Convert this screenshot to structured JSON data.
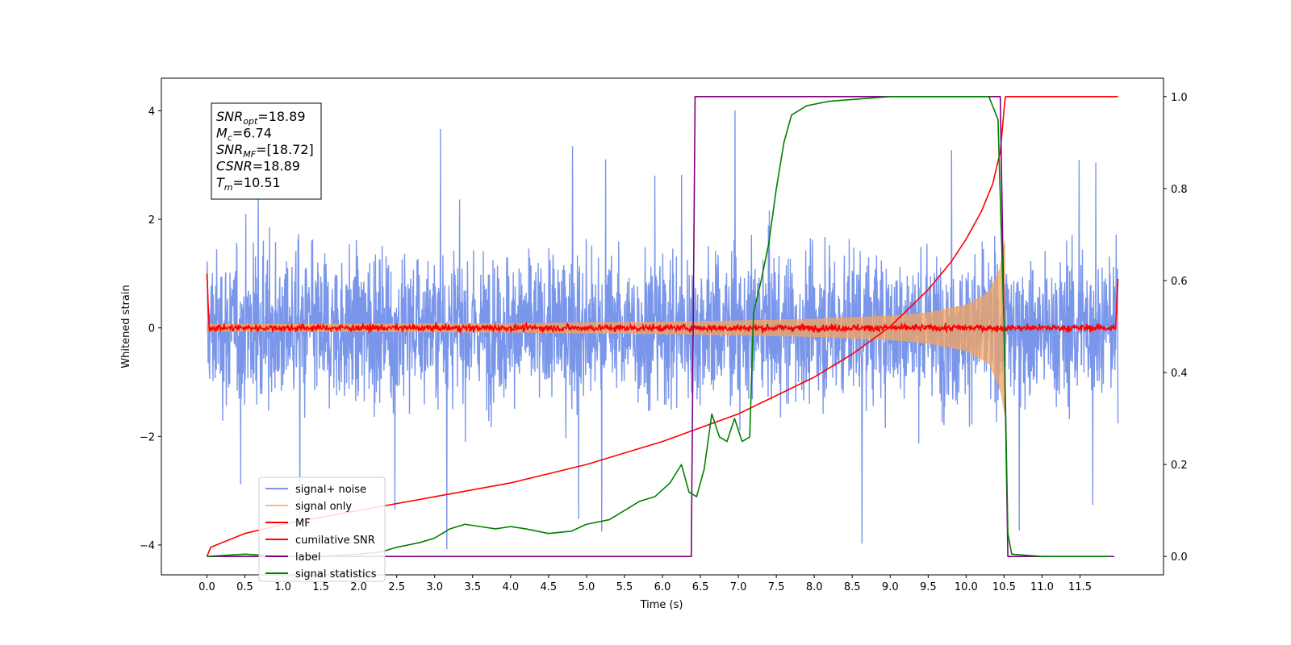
{
  "chart_data": {
    "type": "line",
    "title": "",
    "xlabel": "Time (s)",
    "ylabel": "Whitened strain",
    "xlim": [
      -0.6,
      12.6
    ],
    "ylim": [
      -4.55,
      4.6
    ],
    "y2lim": [
      -0.04,
      1.04
    ],
    "x_ticks": [
      "0.0",
      "0.5",
      "1.0",
      "1.5",
      "2.0",
      "2.5",
      "3.0",
      "3.5",
      "4.0",
      "4.5",
      "5.0",
      "5.5",
      "6.0",
      "6.5",
      "7.0",
      "7.5",
      "8.0",
      "8.5",
      "9.0",
      "9.5",
      "10.0",
      "10.5",
      "11.0",
      "11.5"
    ],
    "y_ticks": [
      "4",
      "2",
      "0",
      "−2",
      "−4"
    ],
    "y2_ticks": [
      "1.0",
      "0.8",
      "0.6",
      "0.4",
      "0.2",
      "0.0"
    ],
    "grid": false,
    "legend_position": "lower-left",
    "annotation": {
      "lines": [
        {
          "sym": "SNR",
          "sub": "opt",
          "val": "=18.89"
        },
        {
          "sym": "M",
          "sub": "c",
          "val": "=6.74"
        },
        {
          "sym": "SNR",
          "sub": "MF",
          "val": "=[18.72]"
        },
        {
          "sym": "CSNR",
          "sub": "",
          "val": "=18.89"
        },
        {
          "sym": "T",
          "sub": "m",
          "val": "=10.51"
        }
      ]
    },
    "series": [
      {
        "name": "signal+ noise",
        "color": "#4169e1",
        "axis": "left",
        "kind": "noise",
        "x_range": [
          0.0,
          12.0
        ],
        "amplitude_typical": 1.5,
        "amplitude_peak": 4.15
      },
      {
        "name": "signal only",
        "color": "#f4a460",
        "axis": "left",
        "kind": "chirp",
        "x_range": [
          0.0,
          10.51
        ],
        "envelope": {
          "x": [
            0.0,
            2.0,
            4.0,
            6.0,
            7.0,
            8.0,
            9.0,
            9.5,
            10.0,
            10.3,
            10.45,
            10.51
          ],
          "y": [
            0.06,
            0.07,
            0.08,
            0.11,
            0.13,
            0.16,
            0.22,
            0.28,
            0.42,
            0.65,
            1.1,
            1.6
          ]
        }
      },
      {
        "name": "MF",
        "color": "#ff0000",
        "axis": "left",
        "kind": "mf_noise",
        "x_range": [
          0.0,
          12.0
        ],
        "amplitude_typical": 0.08,
        "edge_peak_start": 1.0,
        "edge_peak_end": 0.9
      },
      {
        "name": "cumilative SNR",
        "color": "#ff0000",
        "axis": "right",
        "kind": "line",
        "x": [
          0.0,
          0.05,
          0.5,
          1.0,
          2.0,
          3.0,
          4.0,
          5.0,
          6.0,
          7.0,
          8.0,
          8.5,
          9.0,
          9.5,
          9.8,
          10.0,
          10.2,
          10.35,
          10.45,
          10.51,
          10.52,
          12.0
        ],
        "y": [
          0.0,
          0.02,
          0.05,
          0.07,
          0.1,
          0.13,
          0.16,
          0.2,
          0.25,
          0.31,
          0.39,
          0.44,
          0.5,
          0.58,
          0.64,
          0.69,
          0.75,
          0.81,
          0.88,
          0.99,
          1.0,
          1.0
        ]
      },
      {
        "name": "label",
        "color": "#800080",
        "axis": "right",
        "kind": "line",
        "x": [
          0.0,
          6.38,
          6.43,
          10.45,
          10.55,
          11.95
        ],
        "y": [
          0.0,
          0.0,
          1.0,
          1.0,
          0.0,
          0.0
        ]
      },
      {
        "name": "signal statistics",
        "color": "#008000",
        "axis": "right",
        "kind": "line",
        "x": [
          0.0,
          0.5,
          1.0,
          1.5,
          2.0,
          2.3,
          2.5,
          2.8,
          3.0,
          3.2,
          3.4,
          3.6,
          3.8,
          4.0,
          4.2,
          4.5,
          4.8,
          5.0,
          5.3,
          5.5,
          5.7,
          5.9,
          6.1,
          6.25,
          6.35,
          6.45,
          6.55,
          6.65,
          6.75,
          6.85,
          6.95,
          7.05,
          7.15,
          7.2,
          7.3,
          7.4,
          7.5,
          7.6,
          7.7,
          7.9,
          8.2,
          8.6,
          9.0,
          9.5,
          10.0,
          10.3,
          10.42,
          10.5,
          10.55,
          10.6,
          11.0,
          11.9
        ],
        "y": [
          0.0,
          0.005,
          0.0,
          0.0,
          0.005,
          0.01,
          0.02,
          0.03,
          0.04,
          0.06,
          0.07,
          0.065,
          0.06,
          0.065,
          0.06,
          0.05,
          0.055,
          0.07,
          0.08,
          0.1,
          0.12,
          0.13,
          0.16,
          0.2,
          0.14,
          0.13,
          0.19,
          0.31,
          0.26,
          0.25,
          0.3,
          0.25,
          0.26,
          0.53,
          0.6,
          0.68,
          0.8,
          0.9,
          0.96,
          0.98,
          0.99,
          0.995,
          1.0,
          1.0,
          1.0,
          1.0,
          0.95,
          0.5,
          0.05,
          0.005,
          0.0,
          0.0
        ]
      }
    ]
  }
}
